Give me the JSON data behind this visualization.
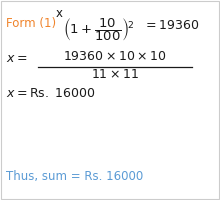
{
  "bg_color": "#ffffff",
  "border_color": "#cccccc",
  "orange_color": "#f0842c",
  "black_color": "#1a1a1a",
  "blue_color": "#5b9bd5",
  "fig_width": 2.2,
  "fig_height": 2.0,
  "dpi": 100
}
